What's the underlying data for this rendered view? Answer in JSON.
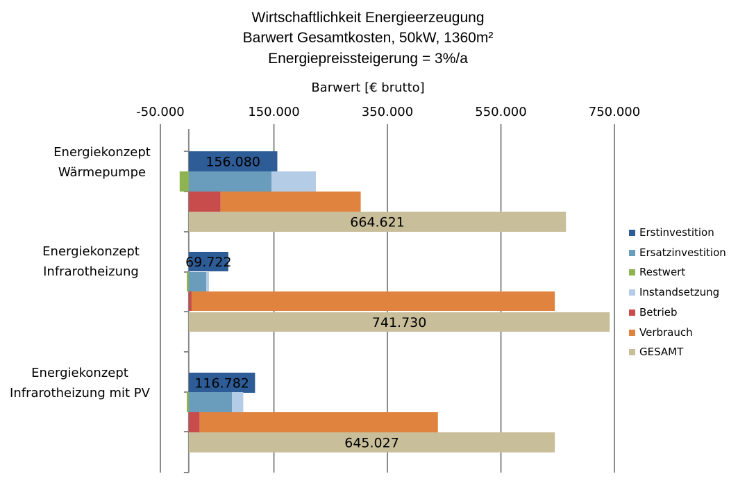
{
  "chart_data": {
    "type": "bar",
    "orientation": "horizontal",
    "title": [
      "Wirtschaftlichkeit Energieerzeugung",
      "Barwert Gesamtkosten, 50kW, 1360m²",
      "Energiepreissteigerung  = 3%/a"
    ],
    "xlabel": "Barwert [€ brutto]",
    "ylabel": "",
    "xlim": [
      -50000,
      750000
    ],
    "xticks": [
      -50000,
      150000,
      350000,
      550000,
      750000
    ],
    "xtick_labels": [
      "-50.000",
      "150.000",
      "350.000",
      "550.000",
      "750.000"
    ],
    "x_axis_position": "top",
    "grid": "vertical",
    "legend_position": "right",
    "categories": [
      [
        "Energiekonzept",
        "Wärmepumpe"
      ],
      [
        "Energiekonzept",
        "Infrarotheizung"
      ],
      [
        "Energiekonzept",
        "Infrarotheizung mit PV"
      ]
    ],
    "series": [
      {
        "name": "Erstinvestition",
        "color": "#2d5c96",
        "values": [
          156080,
          69722,
          116782
        ]
      },
      {
        "name": "Ersatzinvestition",
        "color": "#6a9dbb",
        "values": [
          146000,
          31000,
          76000
        ]
      },
      {
        "name": "Restwert",
        "color": "#8db450",
        "values": [
          -16000,
          -3500,
          -3500
        ]
      },
      {
        "name": "Instandsetzung",
        "color": "#b5cce6",
        "values": [
          78000,
          4500,
          20000
        ]
      },
      {
        "name": "Betrieb",
        "color": "#c94c4c",
        "values": [
          56000,
          5000,
          19000
        ]
      },
      {
        "name": "Verbrauch",
        "color": "#e0833f",
        "values": [
          247000,
          640000,
          420000
        ]
      },
      {
        "name": "GESAMT",
        "color": "#c9be9a",
        "values": [
          664621,
          741730,
          645027
        ]
      }
    ],
    "stacked_pairs": [
      [
        "Ersatzinvestition",
        "Instandsetzung"
      ],
      [
        "Betrieb",
        "Verbrauch"
      ]
    ],
    "data_labels": {
      "Erstinvestition": [
        "156.080",
        "69.722",
        "116.782"
      ],
      "GESAMT": [
        "664.621",
        "741.730",
        "645.027"
      ]
    }
  }
}
